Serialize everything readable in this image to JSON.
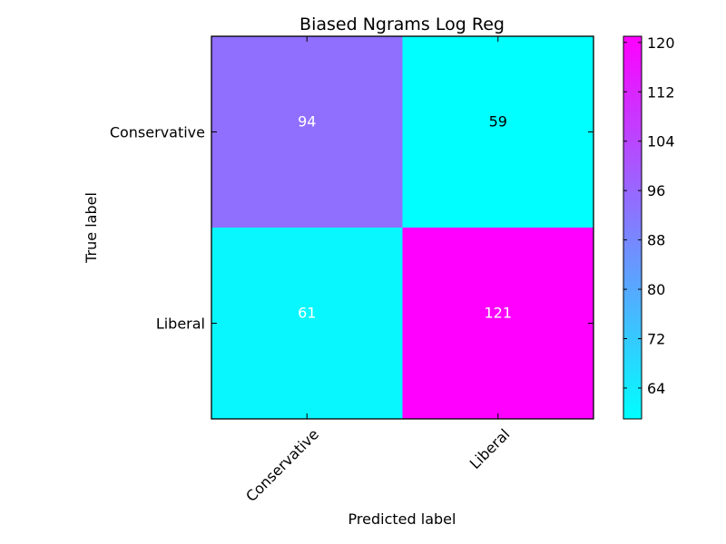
{
  "chart_data": {
    "type": "heatmap",
    "title": "Biased Ngrams Log Reg",
    "xlabel": "Predicted label",
    "ylabel": "True label",
    "x_categories": [
      "Conservative",
      "Liberal"
    ],
    "y_categories": [
      "Conservative",
      "Liberal"
    ],
    "values": [
      [
        94,
        59
      ],
      [
        61,
        121
      ]
    ],
    "cell_label_colors": [
      [
        "#ffffff",
        "#000000"
      ],
      [
        "#ffffff",
        "#ffffff"
      ]
    ],
    "colormap": "cool",
    "colormap_colors": [
      "#00ffff",
      "#ff00ff"
    ],
    "colorbar": {
      "range": [
        59,
        121
      ],
      "ticks": [
        64,
        72,
        80,
        88,
        96,
        104,
        112,
        120
      ]
    },
    "grid": false
  }
}
